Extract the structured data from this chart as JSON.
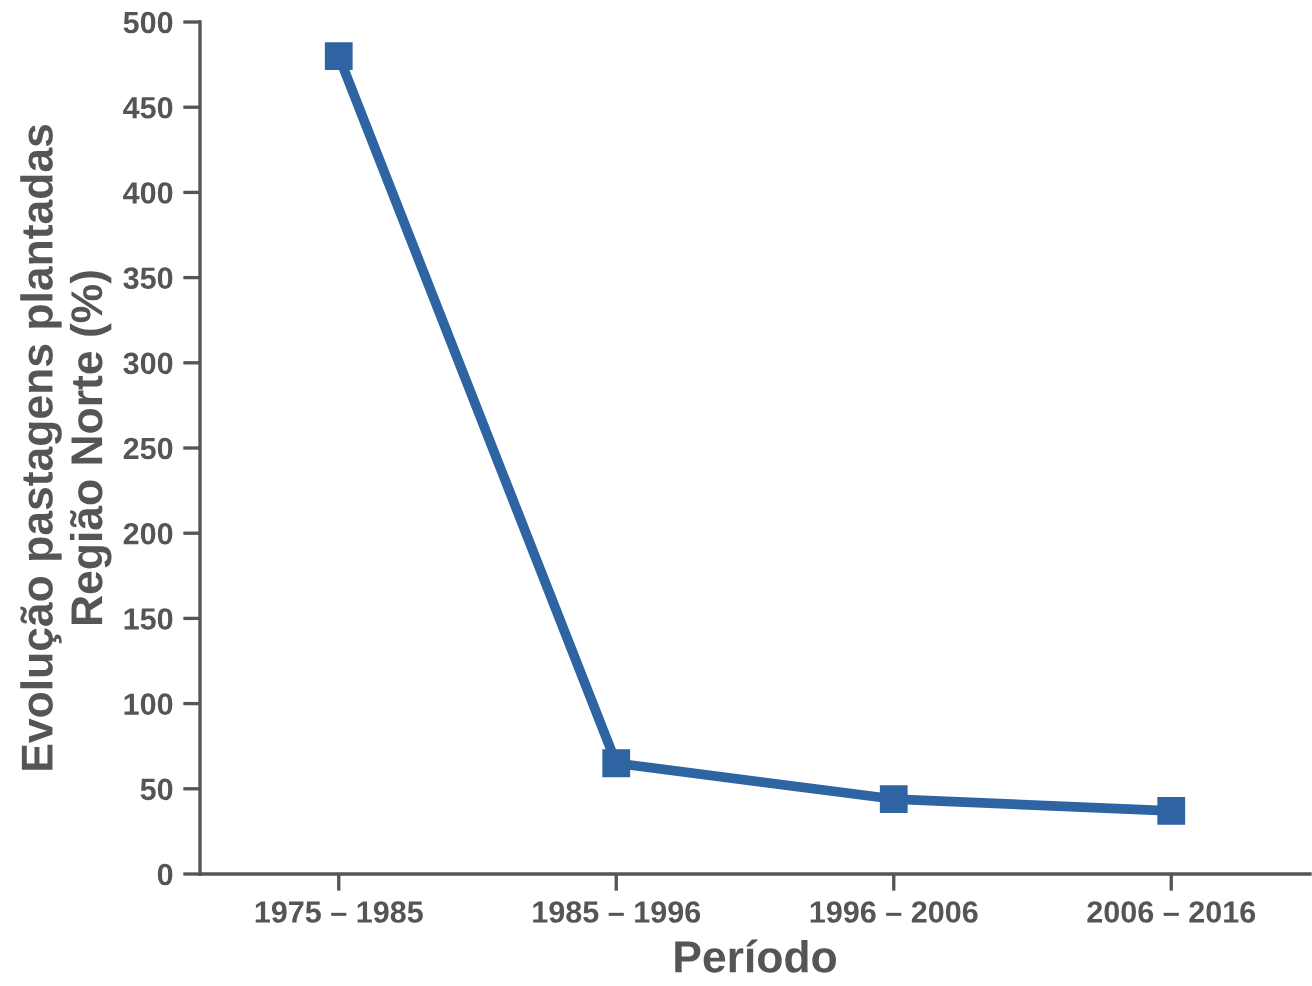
{
  "chart_data": {
    "type": "line",
    "xlabel": "Período",
    "ylabel": "Evolução pastagens plantadas\nRegião Norte (%)",
    "categories": [
      "1975 – 1985",
      "1985 – 1996",
      "1996 – 2006",
      "2006 – 2016"
    ],
    "series": [
      {
        "color": "#2f64a3",
        "values": [
          480,
          65,
          44,
          37
        ]
      }
    ],
    "ylim": [
      0,
      500
    ],
    "yticks": [
      0,
      50,
      100,
      150,
      200,
      250,
      300,
      350,
      400,
      450,
      500
    ],
    "marker": "square",
    "line_style": "solid",
    "grid": false,
    "legend": false
  }
}
